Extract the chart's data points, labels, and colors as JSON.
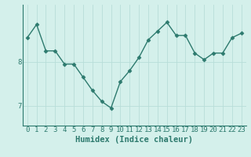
{
  "x": [
    0,
    1,
    2,
    3,
    4,
    5,
    6,
    7,
    8,
    9,
    10,
    11,
    12,
    13,
    14,
    15,
    16,
    17,
    18,
    19,
    20,
    21,
    22,
    23
  ],
  "y": [
    8.55,
    8.85,
    8.25,
    8.25,
    7.95,
    7.95,
    7.65,
    7.35,
    7.1,
    6.95,
    7.55,
    7.8,
    8.1,
    8.5,
    8.7,
    8.9,
    8.6,
    8.6,
    8.2,
    8.05,
    8.2,
    8.2,
    8.55,
    8.65
  ],
  "line_color": "#2d7a6e",
  "marker": "D",
  "markersize": 2.5,
  "linewidth": 1.0,
  "background_color": "#d4f0eb",
  "grid_color": "#b8ddd8",
  "xlabel": "Humidex (Indice chaleur)",
  "xlabel_fontsize": 7.5,
  "tick_fontsize": 6.5,
  "ytick_color": "#2d7a6e",
  "yticks": [
    7,
    8
  ],
  "ylim": [
    6.55,
    9.3
  ],
  "xlim": [
    -0.5,
    23.5
  ],
  "xtick_labels": [
    "0",
    "1",
    "2",
    "3",
    "4",
    "5",
    "6",
    "7",
    "8",
    "9",
    "10",
    "11",
    "12",
    "13",
    "14",
    "15",
    "16",
    "17",
    "18",
    "19",
    "20",
    "21",
    "22",
    "23"
  ]
}
